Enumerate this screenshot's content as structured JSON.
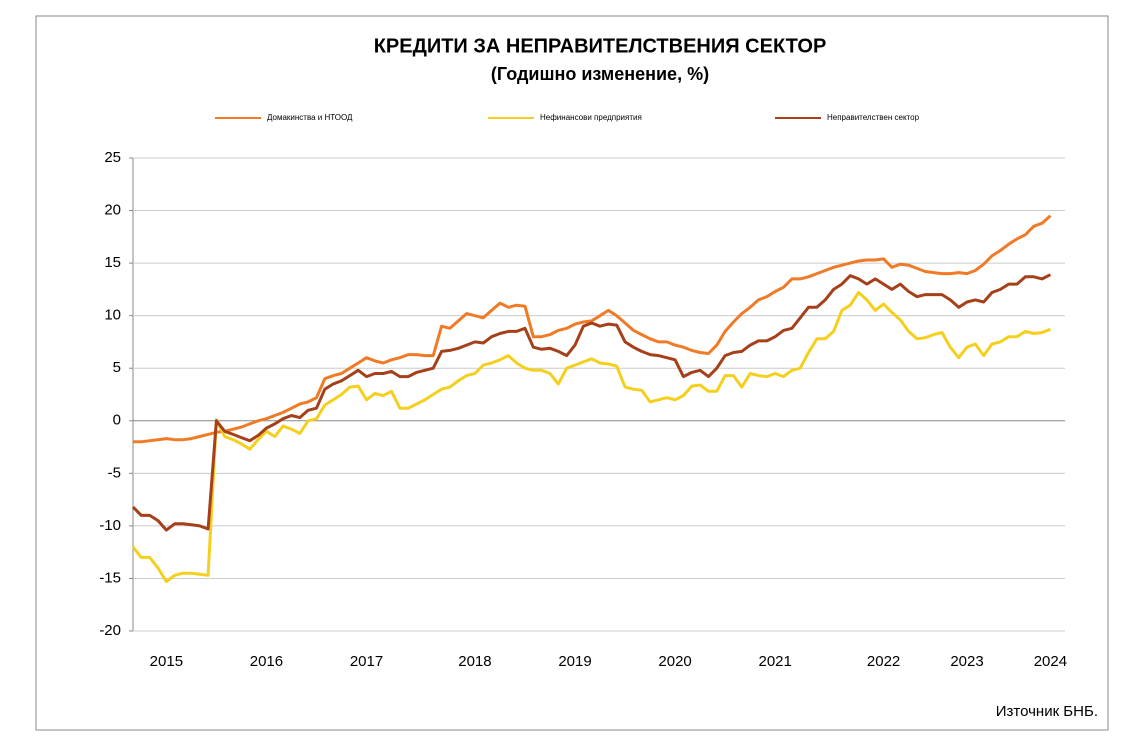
{
  "chart_data": {
    "type": "line",
    "title": "КРЕДИТИ ЗА НЕПРАВИТЕЛСТВЕНИЯ  СЕКТОР",
    "subtitle": "(Годишно  изменение, %)",
    "source": "Източник БНБ.",
    "categories": [
      null,
      null,
      null,
      null,
      "2015",
      null,
      null,
      null,
      null,
      null,
      null,
      null,
      null,
      null,
      null,
      null,
      "2016",
      null,
      null,
      null,
      null,
      null,
      null,
      null,
      null,
      null,
      null,
      null,
      "2017",
      null,
      null,
      null,
      null,
      null,
      null,
      null,
      null,
      null,
      null,
      null,
      null,
      "2018",
      null,
      null,
      null,
      null,
      null,
      null,
      null,
      null,
      null,
      null,
      null,
      "2019",
      null,
      null,
      null,
      null,
      null,
      null,
      null,
      null,
      null,
      null,
      null,
      "2020",
      null,
      null,
      null,
      null,
      null,
      null,
      null,
      null,
      null,
      null,
      null,
      "2021",
      null,
      null,
      null,
      null,
      null,
      null,
      null,
      null,
      null,
      null,
      null,
      null,
      "2022",
      null,
      null,
      null,
      null,
      null,
      null,
      null,
      null,
      null,
      "2023",
      null,
      null,
      null,
      null,
      null,
      null,
      null,
      null,
      null,
      "2024"
    ],
    "series": [
      {
        "name": "Домакинства и НТООД",
        "color": "#f07a26",
        "values": [
          -2,
          -2,
          -1.9,
          -1.8,
          -1.7,
          -1.8,
          -1.8,
          -1.7,
          -1.5,
          -1.3,
          -1.1,
          -1,
          -0.8,
          -0.6,
          -0.3,
          0,
          0.2,
          0.5,
          0.8,
          1.2,
          1.6,
          1.8,
          2.2,
          4,
          4.3,
          4.5,
          5,
          5.5,
          6,
          5.7,
          5.5,
          5.8,
          6,
          6.3,
          6.3,
          6.2,
          6.2,
          9,
          8.8,
          9.5,
          10.2,
          10,
          9.8,
          10.5,
          11.2,
          10.8,
          11,
          10.9,
          8,
          8,
          8.2,
          8.6,
          8.8,
          9.2,
          9.4,
          9.5,
          10,
          10.5,
          10,
          9.3,
          8.6,
          8.2,
          7.8,
          7.5,
          7.5,
          7.2,
          7,
          6.7,
          6.5,
          6.4,
          7.2,
          8.5,
          9.4,
          10.2,
          10.8,
          11.5,
          11.8,
          12.3,
          12.7,
          13.5,
          13.5,
          13.7,
          14,
          14.3,
          14.6,
          14.8,
          15,
          15.2,
          15.3,
          15.3,
          15.4,
          14.6,
          14.9,
          14.8,
          14.5,
          14.2,
          14.1,
          14,
          14,
          14.1,
          14,
          14.3,
          14.9,
          15.7,
          16.2,
          16.8,
          17.3,
          17.7,
          18.5,
          18.8,
          19.5
        ]
      },
      {
        "name": "Нефинансови  предприятия",
        "color": "#f5cf1e",
        "values": [
          -12,
          -13,
          -13,
          -14,
          -15.3,
          -14.7,
          -14.5,
          -14.5,
          -14.6,
          -14.7,
          0.1,
          -1.5,
          -1.8,
          -2.2,
          -2.7,
          -1.8,
          -1,
          -1.5,
          -0.5,
          -0.8,
          -1.2,
          0,
          0.2,
          1.5,
          2,
          2.5,
          3.2,
          3.3,
          2,
          2.6,
          2.4,
          2.8,
          1.2,
          1.2,
          1.6,
          2,
          2.5,
          3,
          3.2,
          3.8,
          4.3,
          4.5,
          5.3,
          5.5,
          5.8,
          6.2,
          5.5,
          5,
          4.8,
          4.8,
          4.5,
          3.5,
          5,
          5.3,
          5.6,
          5.9,
          5.5,
          5.4,
          5.2,
          3.2,
          3,
          2.9,
          1.8,
          2,
          2.2,
          2,
          2.4,
          3.3,
          3.4,
          2.8,
          2.8,
          4.3,
          4.3,
          3.2,
          4.5,
          4.3,
          4.2,
          4.5,
          4.2,
          4.8,
          5,
          6.5,
          7.8,
          7.8,
          8.5,
          10.5,
          11,
          12.2,
          11.5,
          10.5,
          11.1,
          10.3,
          9.6,
          8.5,
          7.8,
          7.9,
          8.2,
          8.4,
          7,
          6,
          7,
          7.3,
          6.2,
          7.3,
          7.5,
          8,
          8,
          8.5,
          8.3,
          8.4,
          8.7
        ]
      },
      {
        "name": "Неправителствен  сектор",
        "color": "#a5401a",
        "values": [
          -8.2,
          -9,
          -9,
          -9.5,
          -10.4,
          -9.8,
          -9.8,
          -9.9,
          -10,
          -10.3,
          0,
          -1,
          -1.3,
          -1.6,
          -1.9,
          -1.4,
          -0.7,
          -0.3,
          0.2,
          0.5,
          0.3,
          1,
          1.2,
          3,
          3.5,
          3.8,
          4.3,
          4.8,
          4.2,
          4.5,
          4.5,
          4.7,
          4.2,
          4.2,
          4.6,
          4.8,
          5,
          6.6,
          6.7,
          6.9,
          7.2,
          7.5,
          7.4,
          8,
          8.3,
          8.5,
          8.5,
          8.8,
          7,
          6.8,
          6.9,
          6.6,
          6.2,
          7.2,
          9,
          9.3,
          9,
          9.2,
          9.1,
          7.5,
          7,
          6.6,
          6.3,
          6.2,
          6,
          5.8,
          4.2,
          4.6,
          4.8,
          4.2,
          5,
          6.2,
          6.5,
          6.6,
          7.2,
          7.6,
          7.6,
          8,
          8.6,
          8.8,
          9.8,
          10.8,
          10.8,
          11.5,
          12.5,
          13,
          13.8,
          13.5,
          13,
          13.5,
          13,
          12.5,
          13,
          12.3,
          11.8,
          12,
          12,
          12,
          11.5,
          10.8,
          11.3,
          11.5,
          11.3,
          12.2,
          12.5,
          13,
          13,
          13.7,
          13.7,
          13.5,
          13.9
        ]
      }
    ],
    "ylim": [
      -20,
      25
    ],
    "yticks": [
      -20,
      -15,
      -10,
      -5,
      0,
      5,
      10,
      15,
      20,
      25
    ],
    "grid": true
  }
}
